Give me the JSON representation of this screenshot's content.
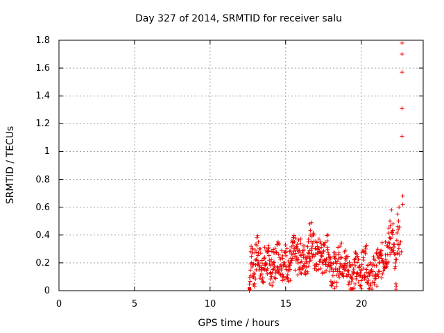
{
  "chart_data": {
    "type": "scatter",
    "title": "Day 327 of 2014, SRMTID for receiver salu",
    "xlabel": "GPS time / hours",
    "ylabel": "SRMTID / TECUs",
    "xlim": [
      0,
      24.1
    ],
    "ylim": [
      0,
      1.8
    ],
    "xticks": [
      "0",
      "5",
      "10",
      "15",
      "20"
    ],
    "xtick_values": [
      0,
      5,
      10,
      15,
      20
    ],
    "yticks": [
      "0",
      "0.2",
      "0.4",
      "0.6",
      "0.8",
      "1",
      "1.2",
      "1.4",
      "1.6",
      "1.8"
    ],
    "ytick_values": [
      0,
      0.2,
      0.4,
      0.6,
      0.8,
      1.0,
      1.2,
      1.4,
      1.6,
      1.8
    ],
    "grid": true,
    "marker": "+",
    "color": "#ee0000",
    "series": [
      {
        "name": "salu",
        "x_start": 12.6,
        "x_end": 22.75,
        "sample_interval_hours": 0.0167,
        "envelope_note": "dense noisy band roughly 0.05-0.35 TECU between 12.6 h and 22.5 h",
        "points": [
          [
            12.6,
            0.0
          ],
          [
            12.7,
            0.28
          ],
          [
            12.8,
            0.3
          ],
          [
            12.9,
            0.1
          ],
          [
            13.0,
            0.22
          ],
          [
            13.1,
            0.38
          ],
          [
            13.2,
            0.35
          ],
          [
            13.4,
            0.15
          ],
          [
            13.6,
            0.24
          ],
          [
            13.8,
            0.28
          ],
          [
            14.0,
            0.18
          ],
          [
            14.2,
            0.2
          ],
          [
            14.5,
            0.35
          ],
          [
            14.8,
            0.25
          ],
          [
            15.0,
            0.28
          ],
          [
            15.3,
            0.2
          ],
          [
            15.5,
            0.38
          ],
          [
            15.8,
            0.3
          ],
          [
            16.0,
            0.34
          ],
          [
            16.2,
            0.26
          ],
          [
            16.5,
            0.35
          ],
          [
            16.6,
            0.48
          ],
          [
            16.7,
            0.49
          ],
          [
            17.0,
            0.3
          ],
          [
            17.3,
            0.35
          ],
          [
            17.5,
            0.28
          ],
          [
            17.8,
            0.4
          ],
          [
            18.0,
            0.2
          ],
          [
            18.3,
            0.15
          ],
          [
            18.6,
            0.32
          ],
          [
            19.0,
            0.22
          ],
          [
            19.3,
            0.1
          ],
          [
            19.6,
            0.18
          ],
          [
            20.0,
            0.15
          ],
          [
            20.3,
            0.3
          ],
          [
            20.6,
            0.05
          ],
          [
            21.0,
            0.18
          ],
          [
            21.3,
            0.25
          ],
          [
            21.6,
            0.35
          ],
          [
            21.9,
            0.5
          ],
          [
            22.0,
            0.58
          ],
          [
            22.1,
            0.48
          ],
          [
            22.3,
            0.05
          ],
          [
            22.4,
            0.55
          ],
          [
            22.5,
            0.6
          ],
          [
            22.6,
            0.35
          ],
          [
            22.65,
            0.28
          ],
          [
            22.7,
            1.11
          ],
          [
            22.7,
            1.31
          ],
          [
            22.7,
            1.57
          ],
          [
            22.7,
            1.7
          ],
          [
            22.7,
            1.78
          ],
          [
            22.75,
            0.68
          ],
          [
            22.75,
            0.62
          ]
        ]
      }
    ]
  }
}
